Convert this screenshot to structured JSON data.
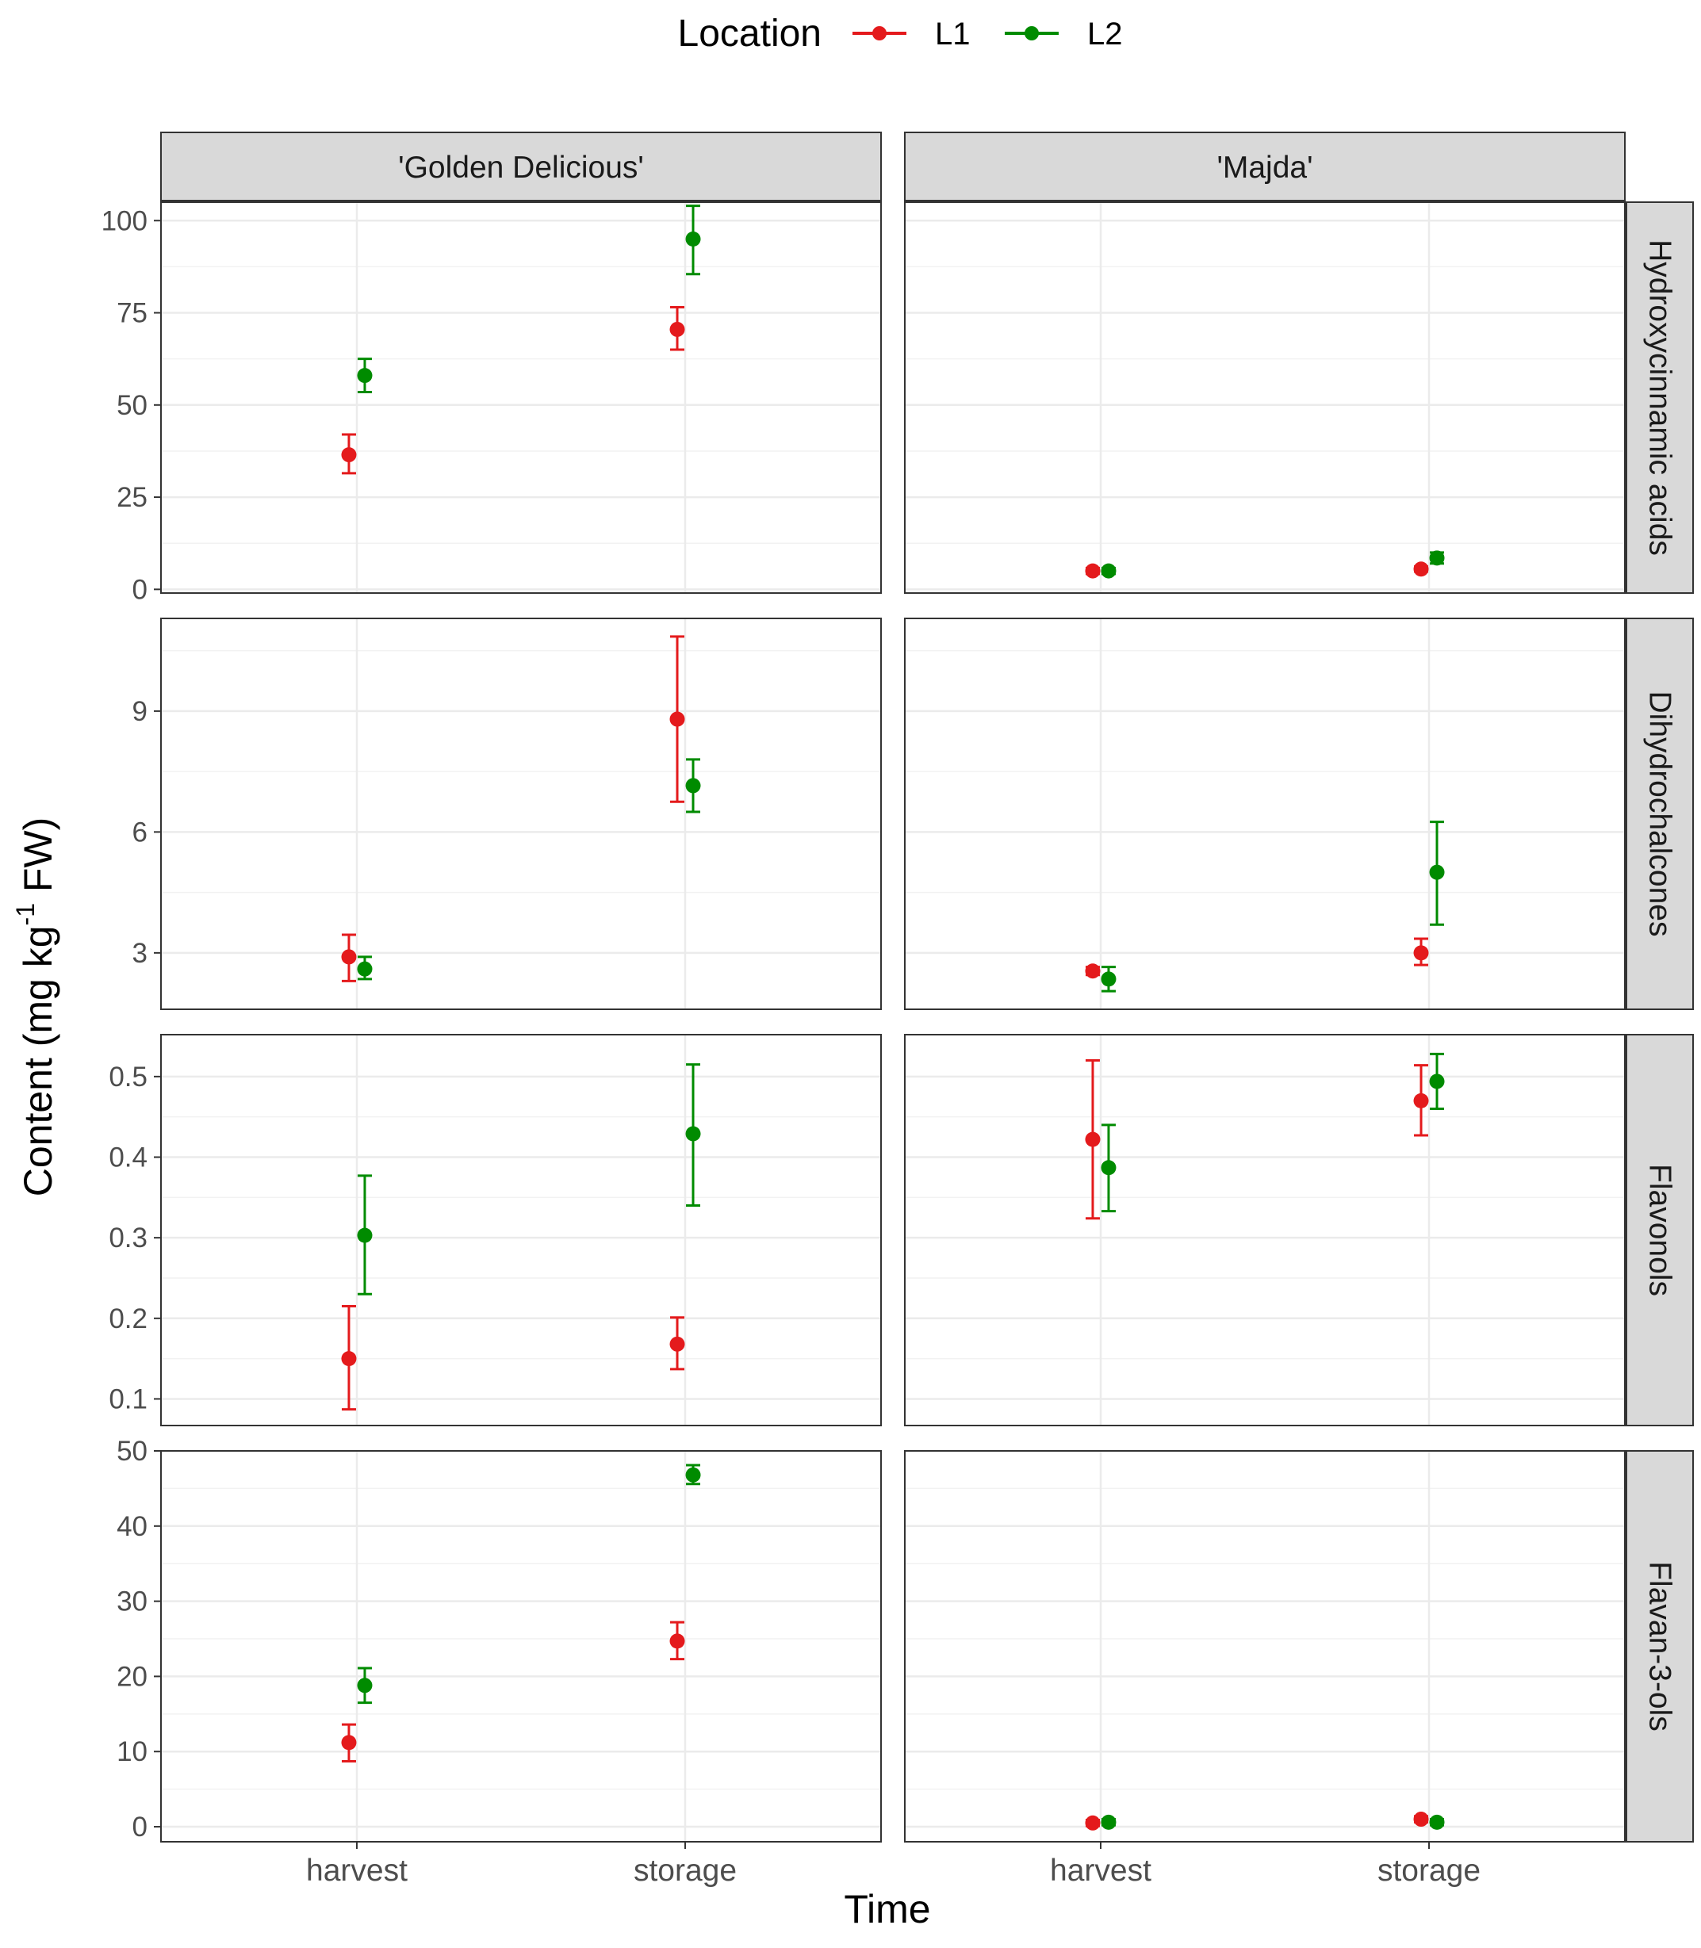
{
  "chart_data": {
    "type": "scatter",
    "subtype": "point-with-errorbars, faceted grid",
    "xlabel": "Time",
    "ylabel": "Content (mg kg",
    "ylabel_superscript": "-1",
    "ylabel_suffix": " FW)",
    "legend": {
      "title": "Location",
      "position": "top",
      "entries": [
        {
          "name": "L1",
          "color": "#E41A1C"
        },
        {
          "name": "L2",
          "color": "#008B00"
        }
      ]
    },
    "x_categories": [
      "harvest",
      "storage"
    ],
    "columns": [
      "'Golden Delicious'",
      "'Majda'"
    ],
    "rows": [
      {
        "label": "Hydroxycinnamic acids",
        "ylim": [
          -1,
          105
        ],
        "ticks": [
          0,
          25,
          50,
          75,
          100
        ],
        "minor": [
          12.5,
          37.5,
          62.5,
          87.5
        ],
        "panels": [
          {
            "column": "'Golden Delicious'",
            "points": [
              {
                "series": "L1",
                "x": "harvest",
                "y": 36.5,
                "lo": 31.5,
                "hi": 42
              },
              {
                "series": "L2",
                "x": "harvest",
                "y": 58,
                "lo": 53.5,
                "hi": 62.5
              },
              {
                "series": "L1",
                "x": "storage",
                "y": 70.5,
                "lo": 65,
                "hi": 76.5
              },
              {
                "series": "L2",
                "x": "storage",
                "y": 95,
                "lo": 85.5,
                "hi": 104
              }
            ]
          },
          {
            "column": "'Majda'",
            "points": [
              {
                "series": "L1",
                "x": "harvest",
                "y": 5,
                "lo": 4.2,
                "hi": 5.8
              },
              {
                "series": "L2",
                "x": "harvest",
                "y": 5,
                "lo": 4.2,
                "hi": 5.8
              },
              {
                "series": "L1",
                "x": "storage",
                "y": 5.5,
                "lo": 4.8,
                "hi": 6.2
              },
              {
                "series": "L2",
                "x": "storage",
                "y": 8.5,
                "lo": 7,
                "hi": 10
              }
            ]
          }
        ]
      },
      {
        "label": "Dihydrochalcones",
        "ylim": [
          1.6,
          11.3
        ],
        "ticks": [
          3,
          6,
          9
        ],
        "minor": [
          1.5,
          4.5,
          7.5,
          10.5
        ],
        "panels": [
          {
            "column": "'Golden Delicious'",
            "points": [
              {
                "series": "L1",
                "x": "harvest",
                "y": 2.9,
                "lo": 2.3,
                "hi": 3.45
              },
              {
                "series": "L2",
                "x": "harvest",
                "y": 2.6,
                "lo": 2.35,
                "hi": 2.9
              },
              {
                "series": "L1",
                "x": "storage",
                "y": 8.8,
                "lo": 6.75,
                "hi": 10.85
              },
              {
                "series": "L2",
                "x": "storage",
                "y": 7.15,
                "lo": 6.5,
                "hi": 7.8
              }
            ]
          },
          {
            "column": "'Majda'",
            "points": [
              {
                "series": "L1",
                "x": "harvest",
                "y": 2.55,
                "lo": 2.45,
                "hi": 2.65
              },
              {
                "series": "L2",
                "x": "harvest",
                "y": 2.35,
                "lo": 2.05,
                "hi": 2.65
              },
              {
                "series": "L1",
                "x": "storage",
                "y": 3.0,
                "lo": 2.7,
                "hi": 3.35
              },
              {
                "series": "L2",
                "x": "storage",
                "y": 5.0,
                "lo": 3.7,
                "hi": 6.25
              }
            ]
          }
        ]
      },
      {
        "label": "Flavonols",
        "ylim": [
          0.067,
          0.552
        ],
        "ticks": [
          0.1,
          0.2,
          0.3,
          0.4,
          0.5
        ],
        "minor": [
          0.15,
          0.25,
          0.35,
          0.45
        ],
        "panels": [
          {
            "column": "'Golden Delicious'",
            "points": [
              {
                "series": "L1",
                "x": "harvest",
                "y": 0.15,
                "lo": 0.087,
                "hi": 0.215
              },
              {
                "series": "L2",
                "x": "harvest",
                "y": 0.303,
                "lo": 0.23,
                "hi": 0.377
              },
              {
                "series": "L1",
                "x": "storage",
                "y": 0.168,
                "lo": 0.137,
                "hi": 0.201
              },
              {
                "series": "L2",
                "x": "storage",
                "y": 0.429,
                "lo": 0.34,
                "hi": 0.515
              }
            ]
          },
          {
            "column": "'Majda'",
            "points": [
              {
                "series": "L1",
                "x": "harvest",
                "y": 0.422,
                "lo": 0.324,
                "hi": 0.52
              },
              {
                "series": "L2",
                "x": "harvest",
                "y": 0.387,
                "lo": 0.333,
                "hi": 0.44
              },
              {
                "series": "L1",
                "x": "storage",
                "y": 0.47,
                "lo": 0.427,
                "hi": 0.514
              },
              {
                "series": "L2",
                "x": "storage",
                "y": 0.494,
                "lo": 0.46,
                "hi": 0.528
              }
            ]
          }
        ]
      },
      {
        "label": "Flavan-3-ols",
        "ylim": [
          -2,
          50
        ],
        "ticks": [
          0,
          10,
          20,
          30,
          40,
          50
        ],
        "minor": [
          5,
          15,
          25,
          35,
          45
        ],
        "panels": [
          {
            "column": "'Golden Delicious'",
            "points": [
              {
                "series": "L1",
                "x": "harvest",
                "y": 11.2,
                "lo": 8.7,
                "hi": 13.6
              },
              {
                "series": "L2",
                "x": "harvest",
                "y": 18.8,
                "lo": 16.5,
                "hi": 21.1
              },
              {
                "series": "L1",
                "x": "storage",
                "y": 24.7,
                "lo": 22.3,
                "hi": 27.2
              },
              {
                "series": "L2",
                "x": "storage",
                "y": 46.8,
                "lo": 45.6,
                "hi": 48.1
              }
            ]
          },
          {
            "column": "'Majda'",
            "points": [
              {
                "series": "L1",
                "x": "harvest",
                "y": 0.5,
                "lo": 0.1,
                "hi": 0.9
              },
              {
                "series": "L2",
                "x": "harvest",
                "y": 0.6,
                "lo": 0.2,
                "hi": 1.0
              },
              {
                "series": "L1",
                "x": "storage",
                "y": 1.0,
                "lo": 0.6,
                "hi": 1.4
              },
              {
                "series": "L2",
                "x": "storage",
                "y": 0.6,
                "lo": 0.2,
                "hi": 1.0
              }
            ]
          }
        ]
      }
    ]
  }
}
